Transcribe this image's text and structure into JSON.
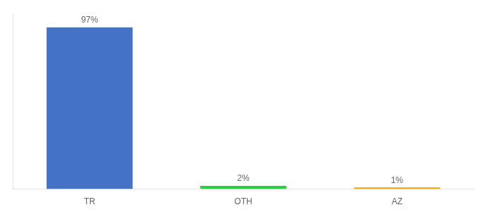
{
  "chart_data": {
    "type": "bar",
    "categories": [
      "TR",
      "OTH",
      "AZ"
    ],
    "values": [
      97,
      2,
      1
    ],
    "value_labels": [
      "97%",
      "2%",
      "1%"
    ],
    "colors": [
      "#4472c4",
      "#2ecc40",
      "#f0a500"
    ],
    "ylim": [
      0,
      105
    ],
    "grid": false,
    "data_labels": true,
    "tick_labels": "x"
  }
}
